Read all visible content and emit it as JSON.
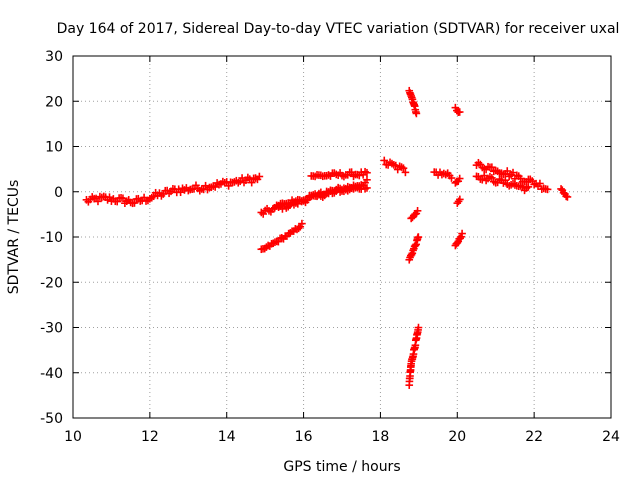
{
  "chart_data": {
    "type": "scatter",
    "title": "Day 164 of 2017, Sidereal Day-to-day VTEC variation (SDTVAR) for receiver uxal",
    "xlabel": "GPS time / hours",
    "ylabel": "SDTVAR / TECUs",
    "xlim": [
      10,
      24
    ],
    "ylim": [
      -50,
      30
    ],
    "xticks": [
      10,
      12,
      14,
      16,
      18,
      20,
      22,
      24
    ],
    "yticks": [
      -50,
      -40,
      -30,
      -20,
      -10,
      0,
      10,
      20,
      30
    ],
    "grid": true,
    "marker": "+",
    "series": [
      {
        "name": "SDTVAR",
        "color": "#ff0000",
        "arcs": [
          {
            "x": [
              10.35,
              10.8,
              11.2,
              11.6,
              11.9,
              12.1,
              12.4,
              12.7,
              13.0,
              13.3,
              13.6,
              14.0,
              14.4,
              14.9
            ],
            "y": [
              -2.0,
              -1.5,
              -1.8,
              -2.3,
              -1.6,
              -1.0,
              -0.3,
              0.4,
              0.6,
              0.9,
              1.3,
              1.9,
              2.4,
              3.0
            ],
            "spread": 1.4
          },
          {
            "x": [
              14.9,
              15.3,
              15.7,
              16.1,
              16.5,
              16.9,
              17.3,
              17.7
            ],
            "y": [
              -4.8,
              -3.6,
              -2.8,
              -1.6,
              -0.6,
              0.4,
              1.2,
              2.2
            ],
            "spread": 1.2
          },
          {
            "x": [
              15.3,
              15.8,
              16.3,
              16.8,
              17.3,
              17.7
            ],
            "y": [
              -3.2,
              -2.0,
              -0.8,
              0.0,
              0.6,
              1.3
            ],
            "spread": 1.0
          },
          {
            "x": [
              16.2,
              16.6,
              17.0,
              17.4,
              17.7
            ],
            "y": [
              3.5,
              3.6,
              3.8,
              3.9,
              4.0
            ],
            "spread": 1.0
          },
          {
            "x": [
              14.9,
              15.3,
              15.7,
              16.0
            ],
            "y": [
              -13.0,
              -11.0,
              -9.0,
              -7.0
            ],
            "spread": 0.6
          },
          {
            "x": [
              18.1,
              18.4,
              18.7
            ],
            "y": [
              6.5,
              5.5,
              4.5
            ],
            "spread": 1.4
          },
          {
            "x": [
              18.75,
              18.85,
              18.95
            ],
            "y": [
              22.5,
              20.0,
              17.0
            ],
            "spread": 0.5
          },
          {
            "x": [
              18.8,
              18.9,
              19.0
            ],
            "y": [
              -6.0,
              -5.0,
              -4.0
            ],
            "spread": 0.4
          },
          {
            "x": [
              18.75,
              18.85,
              18.95,
              19.0
            ],
            "y": [
              -15.0,
              -13.0,
              -11.0,
              -9.5
            ],
            "spread": 0.5
          },
          {
            "x": [
              18.75,
              18.8,
              18.85,
              18.9,
              18.95,
              19.0
            ],
            "y": [
              -42.5,
              -38.0,
              -36.0,
              -34.0,
              -32.0,
              -30.0
            ],
            "spread": 0.8
          },
          {
            "x": [
              19.4,
              19.7,
              19.9
            ],
            "y": [
              4.2,
              3.8,
              3.4
            ],
            "spread": 1.0
          },
          {
            "x": [
              19.95,
              20.1
            ],
            "y": [
              18.5,
              17.0
            ],
            "spread": 0.5
          },
          {
            "x": [
              19.95,
              20.1
            ],
            "y": [
              2.0,
              3.0
            ],
            "spread": 0.4
          },
          {
            "x": [
              20.0,
              20.1
            ],
            "y": [
              -2.5,
              -1.5
            ],
            "spread": 0.3
          },
          {
            "x": [
              19.95,
              20.05,
              20.15
            ],
            "y": [
              -12.0,
              -10.5,
              -9.0
            ],
            "spread": 0.4
          },
          {
            "x": [
              20.5,
              21.0,
              21.5,
              22.0,
              22.4
            ],
            "y": [
              6.0,
              5.0,
              3.5,
              2.0,
              0.5
            ],
            "spread": 1.4
          },
          {
            "x": [
              20.5,
              21.0,
              21.5,
              21.9
            ],
            "y": [
              3.5,
              2.5,
              1.5,
              0.5
            ],
            "spread": 1.2
          },
          {
            "x": [
              22.7,
              22.8,
              22.9
            ],
            "y": [
              0.5,
              -0.5,
              -1.5
            ],
            "spread": 0.5
          }
        ]
      }
    ]
  }
}
